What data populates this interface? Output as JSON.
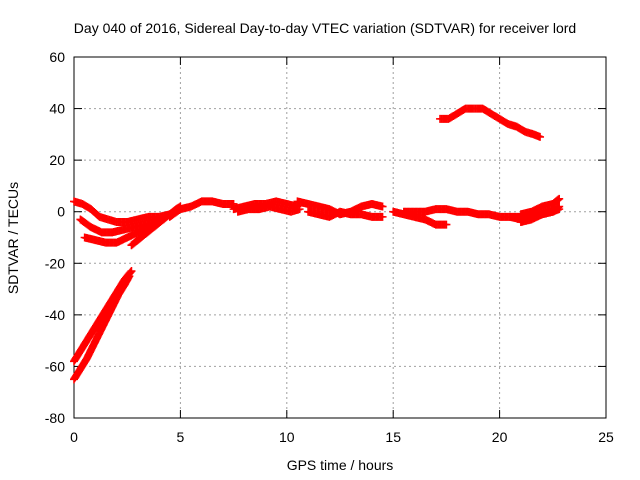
{
  "chart_data": {
    "type": "scatter",
    "title": "Day 040 of 2016, Sidereal Day-to-day VTEC variation (SDTVAR) for receiver lord",
    "xlabel": "GPS time / hours",
    "ylabel": "SDTVAR / TECUs",
    "xlim": [
      0,
      25
    ],
    "ylim": [
      -80,
      60
    ],
    "xticks": [
      0,
      5,
      10,
      15,
      20,
      25
    ],
    "yticks": [
      -80,
      -60,
      -40,
      -20,
      0,
      20,
      40,
      60
    ],
    "xtick_labels": [
      "0",
      "5",
      "10",
      "15",
      "20",
      "25"
    ],
    "ytick_labels": [
      "-80",
      "-60",
      "-40",
      "-20",
      "0",
      "20",
      "40",
      "60"
    ],
    "grid": true,
    "marker": "plus",
    "color": "#ff0000",
    "series": [
      {
        "name": "arc-rise-1",
        "points": [
          [
            0.0,
            -58
          ],
          [
            0.3,
            -54
          ],
          [
            0.6,
            -50
          ],
          [
            0.9,
            -46
          ],
          [
            1.2,
            -42
          ],
          [
            1.5,
            -38
          ],
          [
            1.8,
            -34
          ],
          [
            2.1,
            -30
          ],
          [
            2.4,
            -26
          ],
          [
            2.7,
            -23
          ]
        ]
      },
      {
        "name": "arc-rise-2",
        "points": [
          [
            0.0,
            -65
          ],
          [
            0.3,
            -61
          ],
          [
            0.6,
            -57
          ],
          [
            0.9,
            -52
          ],
          [
            1.2,
            -47
          ],
          [
            1.5,
            -42
          ],
          [
            1.8,
            -37
          ],
          [
            2.1,
            -32
          ],
          [
            2.4,
            -28
          ],
          [
            2.6,
            -25
          ]
        ]
      },
      {
        "name": "arc-a",
        "points": [
          [
            0.0,
            4
          ],
          [
            0.4,
            3
          ],
          [
            0.8,
            1
          ],
          [
            1.2,
            -2
          ],
          [
            1.6,
            -3
          ],
          [
            2.0,
            -4
          ],
          [
            2.5,
            -4
          ],
          [
            3.0,
            -3
          ],
          [
            3.5,
            -2
          ],
          [
            4.0,
            -2
          ],
          [
            4.5,
            -1
          ]
        ]
      },
      {
        "name": "arc-b",
        "points": [
          [
            0.3,
            -3
          ],
          [
            0.8,
            -6
          ],
          [
            1.3,
            -8
          ],
          [
            1.8,
            -8
          ],
          [
            2.3,
            -7
          ],
          [
            2.8,
            -6
          ],
          [
            3.3,
            -5
          ],
          [
            3.8,
            -4
          ],
          [
            4.2,
            -3
          ]
        ]
      },
      {
        "name": "arc-c",
        "points": [
          [
            0.5,
            -10
          ],
          [
            1.0,
            -11
          ],
          [
            1.5,
            -12
          ],
          [
            2.0,
            -12
          ],
          [
            2.5,
            -10
          ],
          [
            3.0,
            -8
          ],
          [
            3.5,
            -6
          ],
          [
            4.0,
            -4
          ],
          [
            4.3,
            -2
          ]
        ]
      },
      {
        "name": "arc-d",
        "points": [
          [
            2.7,
            -13
          ],
          [
            3.0,
            -11
          ],
          [
            3.3,
            -9
          ],
          [
            3.6,
            -7
          ],
          [
            3.9,
            -5
          ],
          [
            4.2,
            -3
          ],
          [
            4.5,
            -1
          ],
          [
            4.8,
            1
          ],
          [
            5.0,
            2
          ]
        ]
      },
      {
        "name": "arc-e",
        "points": [
          [
            4.5,
            -2
          ],
          [
            5.0,
            1
          ],
          [
            5.5,
            2
          ],
          [
            6.0,
            4
          ],
          [
            6.5,
            4
          ],
          [
            7.0,
            3
          ],
          [
            7.5,
            3
          ]
        ]
      },
      {
        "name": "arc-f",
        "points": [
          [
            7.5,
            1
          ],
          [
            8.0,
            2
          ],
          [
            8.5,
            3
          ],
          [
            9.0,
            3
          ],
          [
            9.5,
            4
          ],
          [
            10.0,
            3
          ],
          [
            10.5,
            2
          ]
        ]
      },
      {
        "name": "arc-g",
        "points": [
          [
            7.7,
            0
          ],
          [
            8.2,
            1
          ],
          [
            8.7,
            1
          ],
          [
            9.2,
            2
          ],
          [
            9.7,
            1
          ],
          [
            10.2,
            0
          ],
          [
            10.6,
            1
          ]
        ]
      },
      {
        "name": "arc-h",
        "points": [
          [
            10.5,
            4
          ],
          [
            11.0,
            3
          ],
          [
            11.5,
            2
          ],
          [
            12.0,
            1
          ],
          [
            12.5,
            -1
          ],
          [
            13.0,
            0
          ],
          [
            13.5,
            2
          ],
          [
            14.0,
            3
          ],
          [
            14.5,
            2
          ]
        ]
      },
      {
        "name": "arc-i",
        "points": [
          [
            11.0,
            0
          ],
          [
            11.5,
            -1
          ],
          [
            12.0,
            -2
          ],
          [
            12.5,
            0
          ],
          [
            13.0,
            -1
          ],
          [
            13.5,
            -1
          ],
          [
            14.0,
            -2
          ],
          [
            14.5,
            -2
          ]
        ]
      },
      {
        "name": "arc-j",
        "points": [
          [
            15.0,
            0
          ],
          [
            15.5,
            -1
          ],
          [
            16.0,
            -2
          ],
          [
            16.5,
            -3
          ],
          [
            17.0,
            -5
          ],
          [
            17.5,
            -5
          ]
        ]
      },
      {
        "name": "arc-k",
        "points": [
          [
            15.5,
            0
          ],
          [
            16.0,
            0
          ],
          [
            16.5,
            0
          ],
          [
            17.0,
            1
          ],
          [
            17.5,
            1
          ],
          [
            18.0,
            0
          ],
          [
            18.5,
            0
          ],
          [
            19.0,
            -1
          ],
          [
            19.5,
            -1
          ],
          [
            20.0,
            -2
          ],
          [
            20.5,
            -2
          ],
          [
            21.0,
            -2
          ]
        ]
      },
      {
        "name": "arc-l",
        "points": [
          [
            20.5,
            -2
          ],
          [
            21.0,
            -3
          ],
          [
            21.5,
            -2
          ],
          [
            22.0,
            -1
          ],
          [
            22.5,
            0
          ],
          [
            22.8,
            2
          ]
        ]
      },
      {
        "name": "arc-m",
        "points": [
          [
            21.0,
            -1
          ],
          [
            21.5,
            0
          ],
          [
            22.0,
            2
          ],
          [
            22.5,
            3
          ],
          [
            22.8,
            5
          ]
        ]
      },
      {
        "name": "arc-n",
        "points": [
          [
            21.0,
            -4
          ],
          [
            21.5,
            -3
          ],
          [
            22.0,
            -1
          ],
          [
            22.5,
            0
          ],
          [
            22.8,
            1
          ]
        ]
      },
      {
        "name": "arc-high",
        "points": [
          [
            17.2,
            36
          ],
          [
            17.6,
            36
          ],
          [
            18.0,
            38
          ],
          [
            18.4,
            40
          ],
          [
            18.8,
            40
          ],
          [
            19.2,
            40
          ],
          [
            19.6,
            38
          ],
          [
            20.0,
            36
          ],
          [
            20.4,
            34
          ],
          [
            20.8,
            33
          ],
          [
            21.2,
            31
          ],
          [
            21.6,
            30
          ],
          [
            21.9,
            29
          ]
        ]
      }
    ]
  }
}
